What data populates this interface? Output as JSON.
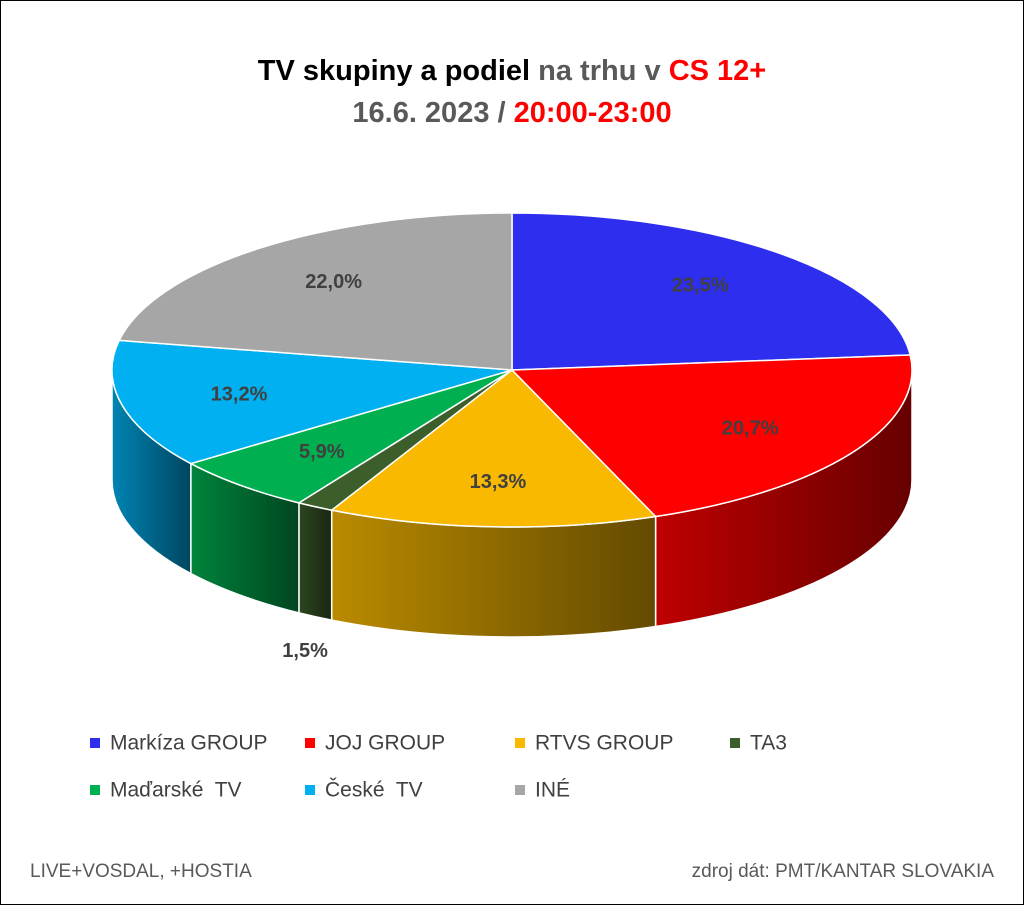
{
  "chart_data": {
    "type": "pie3d",
    "title": [
      "TV skupiny a podiel",
      "na trhu v",
      "CS 12+"
    ],
    "subtitle": [
      "16.6. 2023 /",
      "20:00-23:00"
    ],
    "categories": [
      "Markíza GROUP",
      "JOJ GROUP",
      "RTVS GROUP",
      "TA3",
      "Maďarské  TV",
      "České  TV",
      "INÉ"
    ],
    "values": [
      23.5,
      20.7,
      13.3,
      1.5,
      5.9,
      13.2,
      22.0
    ],
    "value_labels": [
      "23,5%",
      "20,7%",
      "13,3%",
      "1,5%",
      "5,9%",
      "13,2%",
      "22,0%"
    ],
    "colors": [
      "#2e2eee",
      "#ff0000",
      "#f8b900",
      "#3b5e2b",
      "#00b050",
      "#00b0f0",
      "#a6a6a6"
    ],
    "footer_left": "LIVE+VOSDAL, +HOSTIA",
    "footer_right": "zdroj dát: PMT/KANTAR SLOVAKIA"
  }
}
